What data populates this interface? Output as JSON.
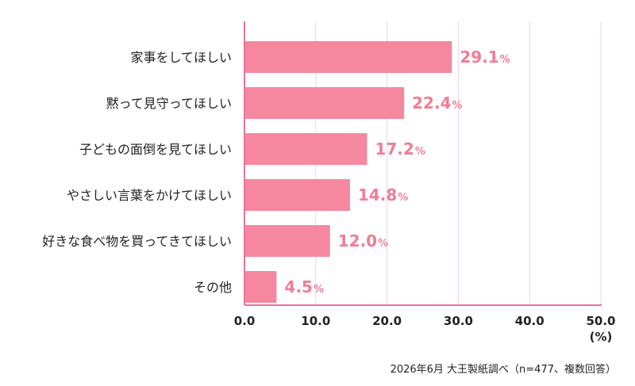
{
  "chart_data": {
    "type": "bar",
    "orientation": "horizontal",
    "categories": [
      "家事をしてほしい",
      "黙って見守ってほしい",
      "子どもの面倒を見てほしい",
      "やさしい言葉をかけてほしい",
      "好きな食べ物を買ってきてほしい",
      "その他"
    ],
    "values": [
      29.1,
      22.4,
      17.2,
      14.8,
      12.0,
      4.5
    ],
    "value_labels": [
      "29.1",
      "22.4",
      "17.2",
      "14.8",
      "12.0",
      "4.5"
    ],
    "value_unit": "%",
    "xlim": [
      0,
      50
    ],
    "x_ticks": [
      "0.0",
      "10.0",
      "20.0",
      "30.0",
      "40.0",
      "50.0"
    ],
    "axis_unit_label": "(%)",
    "grid": true,
    "colors": {
      "bar": "#f5879f",
      "value_label": "#f27c95",
      "axis": "#e8749a",
      "grid": "#f0d3dc"
    }
  },
  "source_note": "2026年6月 大王製紙調べ（n=477、複数回答）"
}
